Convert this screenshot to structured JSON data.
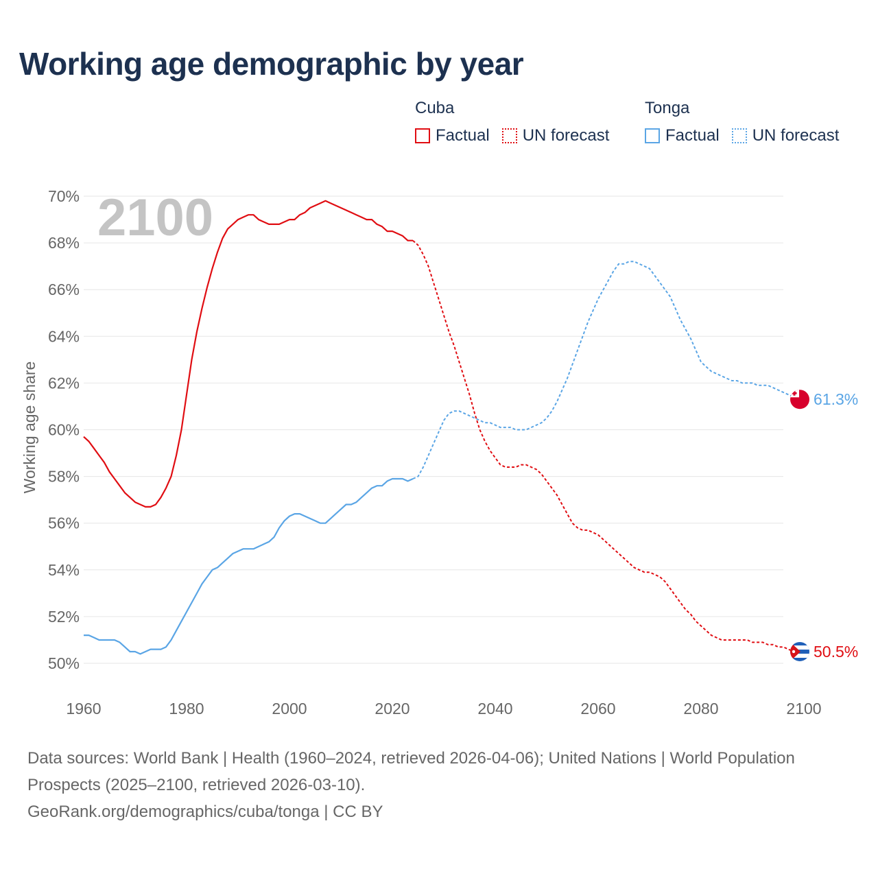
{
  "title": "Working age demographic by year",
  "legend": {
    "groups": [
      {
        "name": "Cuba",
        "factual_label": "Factual",
        "forecast_label": "UN forecast",
        "color": "#e00d12"
      },
      {
        "name": "Tonga",
        "factual_label": "Factual",
        "forecast_label": "UN forecast",
        "color": "#5aa5e5"
      }
    ]
  },
  "footer": {
    "sources": "Data sources: World Bank | Health (1960–2024, retrieved 2026-04-06); United Nations | World Population Prospects (2025–2100, retrieved 2026-03-10).",
    "credit": "GeoRank.org/demographics/cuba/tonga | CC BY"
  },
  "chart_data": {
    "type": "line",
    "title": "Working age demographic by year",
    "year_label": "2100",
    "xlabel": "",
    "ylabel": "Working age share",
    "xlim": [
      1960,
      2100
    ],
    "ylim": [
      50,
      70
    ],
    "x_ticks": [
      1960,
      1980,
      2000,
      2020,
      2040,
      2060,
      2080,
      2100
    ],
    "y_ticks": [
      50,
      52,
      54,
      56,
      58,
      60,
      62,
      64,
      66,
      68,
      70
    ],
    "y_tick_suffix": "%",
    "forecast_start": 2024,
    "series": [
      {
        "name": "Cuba",
        "color": "#e00d12",
        "end_label": "50.5%",
        "flag": "cuba-flag",
        "points": [
          [
            1960,
            59.7
          ],
          [
            1961,
            59.5
          ],
          [
            1962,
            59.2
          ],
          [
            1963,
            58.9
          ],
          [
            1964,
            58.6
          ],
          [
            1965,
            58.2
          ],
          [
            1966,
            57.9
          ],
          [
            1967,
            57.6
          ],
          [
            1968,
            57.3
          ],
          [
            1969,
            57.1
          ],
          [
            1970,
            56.9
          ],
          [
            1971,
            56.8
          ],
          [
            1972,
            56.7
          ],
          [
            1973,
            56.7
          ],
          [
            1974,
            56.8
          ],
          [
            1975,
            57.1
          ],
          [
            1976,
            57.5
          ],
          [
            1977,
            58.0
          ],
          [
            1978,
            58.9
          ],
          [
            1979,
            60.0
          ],
          [
            1980,
            61.5
          ],
          [
            1981,
            63.0
          ],
          [
            1982,
            64.2
          ],
          [
            1983,
            65.2
          ],
          [
            1984,
            66.1
          ],
          [
            1985,
            66.9
          ],
          [
            1986,
            67.6
          ],
          [
            1987,
            68.2
          ],
          [
            1988,
            68.6
          ],
          [
            1989,
            68.8
          ],
          [
            1990,
            69.0
          ],
          [
            1991,
            69.1
          ],
          [
            1992,
            69.2
          ],
          [
            1993,
            69.2
          ],
          [
            1994,
            69.0
          ],
          [
            1995,
            68.9
          ],
          [
            1996,
            68.8
          ],
          [
            1997,
            68.8
          ],
          [
            1998,
            68.8
          ],
          [
            1999,
            68.9
          ],
          [
            2000,
            69.0
          ],
          [
            2001,
            69.0
          ],
          [
            2002,
            69.2
          ],
          [
            2003,
            69.3
          ],
          [
            2004,
            69.5
          ],
          [
            2005,
            69.6
          ],
          [
            2006,
            69.7
          ],
          [
            2007,
            69.8
          ],
          [
            2008,
            69.7
          ],
          [
            2009,
            69.6
          ],
          [
            2010,
            69.5
          ],
          [
            2011,
            69.4
          ],
          [
            2012,
            69.3
          ],
          [
            2013,
            69.2
          ],
          [
            2014,
            69.1
          ],
          [
            2015,
            69.0
          ],
          [
            2016,
            69.0
          ],
          [
            2017,
            68.8
          ],
          [
            2018,
            68.7
          ],
          [
            2019,
            68.5
          ],
          [
            2020,
            68.5
          ],
          [
            2021,
            68.4
          ],
          [
            2022,
            68.3
          ],
          [
            2023,
            68.1
          ],
          [
            2024,
            68.1
          ],
          [
            2025,
            67.9
          ],
          [
            2026,
            67.5
          ],
          [
            2027,
            67.0
          ],
          [
            2028,
            66.3
          ],
          [
            2029,
            65.6
          ],
          [
            2030,
            64.9
          ],
          [
            2031,
            64.2
          ],
          [
            2032,
            63.6
          ],
          [
            2033,
            62.9
          ],
          [
            2034,
            62.2
          ],
          [
            2035,
            61.5
          ],
          [
            2036,
            60.7
          ],
          [
            2037,
            60.0
          ],
          [
            2038,
            59.5
          ],
          [
            2039,
            59.1
          ],
          [
            2040,
            58.8
          ],
          [
            2041,
            58.5
          ],
          [
            2042,
            58.4
          ],
          [
            2043,
            58.4
          ],
          [
            2044,
            58.4
          ],
          [
            2045,
            58.5
          ],
          [
            2046,
            58.5
          ],
          [
            2047,
            58.4
          ],
          [
            2048,
            58.3
          ],
          [
            2049,
            58.1
          ],
          [
            2050,
            57.8
          ],
          [
            2051,
            57.5
          ],
          [
            2052,
            57.2
          ],
          [
            2053,
            56.8
          ],
          [
            2054,
            56.4
          ],
          [
            2055,
            56.0
          ],
          [
            2056,
            55.8
          ],
          [
            2057,
            55.7
          ],
          [
            2058,
            55.7
          ],
          [
            2059,
            55.6
          ],
          [
            2060,
            55.5
          ],
          [
            2061,
            55.3
          ],
          [
            2062,
            55.1
          ],
          [
            2063,
            54.9
          ],
          [
            2064,
            54.7
          ],
          [
            2065,
            54.5
          ],
          [
            2066,
            54.3
          ],
          [
            2067,
            54.1
          ],
          [
            2068,
            54.0
          ],
          [
            2069,
            53.9
          ],
          [
            2070,
            53.9
          ],
          [
            2071,
            53.8
          ],
          [
            2072,
            53.7
          ],
          [
            2073,
            53.5
          ],
          [
            2074,
            53.2
          ],
          [
            2075,
            52.9
          ],
          [
            2076,
            52.6
          ],
          [
            2077,
            52.3
          ],
          [
            2078,
            52.1
          ],
          [
            2079,
            51.8
          ],
          [
            2080,
            51.6
          ],
          [
            2081,
            51.4
          ],
          [
            2082,
            51.2
          ],
          [
            2083,
            51.1
          ],
          [
            2084,
            51.0
          ],
          [
            2085,
            51.0
          ],
          [
            2086,
            51.0
          ],
          [
            2087,
            51.0
          ],
          [
            2088,
            51.0
          ],
          [
            2089,
            51.0
          ],
          [
            2090,
            50.9
          ],
          [
            2091,
            50.9
          ],
          [
            2092,
            50.9
          ],
          [
            2093,
            50.8
          ],
          [
            2094,
            50.8
          ],
          [
            2095,
            50.7
          ],
          [
            2096,
            50.7
          ],
          [
            2097,
            50.6
          ],
          [
            2098,
            50.5
          ],
          [
            2099,
            50.5
          ],
          [
            2100,
            50.5
          ]
        ]
      },
      {
        "name": "Tonga",
        "color": "#5aa5e5",
        "end_label": "61.3%",
        "flag": "tonga-flag",
        "points": [
          [
            1960,
            51.2
          ],
          [
            1961,
            51.2
          ],
          [
            1962,
            51.1
          ],
          [
            1963,
            51.0
          ],
          [
            1964,
            51.0
          ],
          [
            1965,
            51.0
          ],
          [
            1966,
            51.0
          ],
          [
            1967,
            50.9
          ],
          [
            1968,
            50.7
          ],
          [
            1969,
            50.5
          ],
          [
            1970,
            50.5
          ],
          [
            1971,
            50.4
          ],
          [
            1972,
            50.5
          ],
          [
            1973,
            50.6
          ],
          [
            1974,
            50.6
          ],
          [
            1975,
            50.6
          ],
          [
            1976,
            50.7
          ],
          [
            1977,
            51.0
          ],
          [
            1978,
            51.4
          ],
          [
            1979,
            51.8
          ],
          [
            1980,
            52.2
          ],
          [
            1981,
            52.6
          ],
          [
            1982,
            53.0
          ],
          [
            1983,
            53.4
          ],
          [
            1984,
            53.7
          ],
          [
            1985,
            54.0
          ],
          [
            1986,
            54.1
          ],
          [
            1987,
            54.3
          ],
          [
            1988,
            54.5
          ],
          [
            1989,
            54.7
          ],
          [
            1990,
            54.8
          ],
          [
            1991,
            54.9
          ],
          [
            1992,
            54.9
          ],
          [
            1993,
            54.9
          ],
          [
            1994,
            55.0
          ],
          [
            1995,
            55.1
          ],
          [
            1996,
            55.2
          ],
          [
            1997,
            55.4
          ],
          [
            1998,
            55.8
          ],
          [
            1999,
            56.1
          ],
          [
            2000,
            56.3
          ],
          [
            2001,
            56.4
          ],
          [
            2002,
            56.4
          ],
          [
            2003,
            56.3
          ],
          [
            2004,
            56.2
          ],
          [
            2005,
            56.1
          ],
          [
            2006,
            56.0
          ],
          [
            2007,
            56.0
          ],
          [
            2008,
            56.2
          ],
          [
            2009,
            56.4
          ],
          [
            2010,
            56.6
          ],
          [
            2011,
            56.8
          ],
          [
            2012,
            56.8
          ],
          [
            2013,
            56.9
          ],
          [
            2014,
            57.1
          ],
          [
            2015,
            57.3
          ],
          [
            2016,
            57.5
          ],
          [
            2017,
            57.6
          ],
          [
            2018,
            57.6
          ],
          [
            2019,
            57.8
          ],
          [
            2020,
            57.9
          ],
          [
            2021,
            57.9
          ],
          [
            2022,
            57.9
          ],
          [
            2023,
            57.8
          ],
          [
            2024,
            57.9
          ],
          [
            2025,
            58.0
          ],
          [
            2026,
            58.4
          ],
          [
            2027,
            58.9
          ],
          [
            2028,
            59.4
          ],
          [
            2029,
            59.9
          ],
          [
            2030,
            60.4
          ],
          [
            2031,
            60.7
          ],
          [
            2032,
            60.8
          ],
          [
            2033,
            60.8
          ],
          [
            2034,
            60.7
          ],
          [
            2035,
            60.6
          ],
          [
            2036,
            60.5
          ],
          [
            2037,
            60.4
          ],
          [
            2038,
            60.3
          ],
          [
            2039,
            60.3
          ],
          [
            2040,
            60.2
          ],
          [
            2041,
            60.1
          ],
          [
            2042,
            60.1
          ],
          [
            2043,
            60.1
          ],
          [
            2044,
            60.0
          ],
          [
            2045,
            60.0
          ],
          [
            2046,
            60.0
          ],
          [
            2047,
            60.1
          ],
          [
            2048,
            60.2
          ],
          [
            2049,
            60.3
          ],
          [
            2050,
            60.5
          ],
          [
            2051,
            60.8
          ],
          [
            2052,
            61.2
          ],
          [
            2053,
            61.7
          ],
          [
            2054,
            62.2
          ],
          [
            2055,
            62.8
          ],
          [
            2056,
            63.4
          ],
          [
            2057,
            64.0
          ],
          [
            2058,
            64.6
          ],
          [
            2059,
            65.1
          ],
          [
            2060,
            65.6
          ],
          [
            2061,
            66.0
          ],
          [
            2062,
            66.4
          ],
          [
            2063,
            66.8
          ],
          [
            2064,
            67.1
          ],
          [
            2065,
            67.1
          ],
          [
            2066,
            67.2
          ],
          [
            2067,
            67.2
          ],
          [
            2068,
            67.1
          ],
          [
            2069,
            67.0
          ],
          [
            2070,
            66.9
          ],
          [
            2071,
            66.6
          ],
          [
            2072,
            66.3
          ],
          [
            2073,
            66.0
          ],
          [
            2074,
            65.7
          ],
          [
            2075,
            65.2
          ],
          [
            2076,
            64.7
          ],
          [
            2077,
            64.3
          ],
          [
            2078,
            63.9
          ],
          [
            2079,
            63.4
          ],
          [
            2080,
            62.9
          ],
          [
            2081,
            62.7
          ],
          [
            2082,
            62.5
          ],
          [
            2083,
            62.4
          ],
          [
            2084,
            62.3
          ],
          [
            2085,
            62.2
          ],
          [
            2086,
            62.1
          ],
          [
            2087,
            62.1
          ],
          [
            2088,
            62.0
          ],
          [
            2089,
            62.0
          ],
          [
            2090,
            62.0
          ],
          [
            2091,
            61.9
          ],
          [
            2092,
            61.9
          ],
          [
            2093,
            61.9
          ],
          [
            2094,
            61.8
          ],
          [
            2095,
            61.7
          ],
          [
            2096,
            61.6
          ],
          [
            2097,
            61.5
          ],
          [
            2098,
            61.4
          ],
          [
            2099,
            61.3
          ],
          [
            2100,
            61.3
          ]
        ]
      }
    ]
  }
}
